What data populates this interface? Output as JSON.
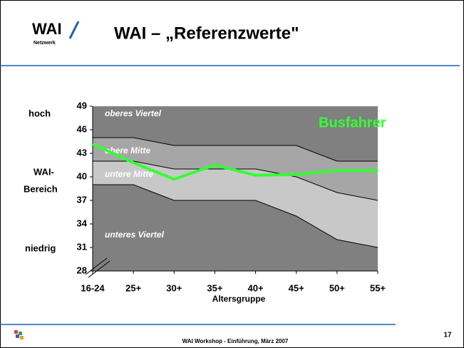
{
  "header": {
    "logo": "WAI",
    "logo_sub": "Netzwerk",
    "title": "WAI – „Referenzwerte\""
  },
  "footer": {
    "text": "WAI Workshop - Einführung, März 2007",
    "page": "17"
  },
  "chart_data": {
    "type": "line",
    "categories": [
      "16-24",
      "25+",
      "30+",
      "35+",
      "40+",
      "45+",
      "50+",
      "55+"
    ],
    "x_label": "Altersgruppe",
    "side_labels": [
      "hoch",
      "WAI-",
      "Bereich",
      "niedrig"
    ],
    "ylim": [
      28,
      49
    ],
    "yticks": [
      28,
      31,
      34,
      37,
      40,
      43,
      46,
      49
    ],
    "bands": [
      {
        "label": "oberes Viertel",
        "color": "#808080"
      },
      {
        "label": "obere Mitte",
        "color": "#a6a6a6"
      },
      {
        "label": "untere Mitte",
        "color": "#c8c8c8"
      },
      {
        "label": "unteres Viertel",
        "color": "#808080"
      }
    ],
    "boundaries": [
      [
        45,
        45,
        44,
        44,
        44,
        44,
        42,
        42
      ],
      [
        42,
        42,
        41,
        41,
        41,
        40,
        38,
        37
      ],
      [
        39,
        39,
        37,
        37,
        37,
        35,
        32,
        31
      ]
    ],
    "series": [
      {
        "name": "Busfahrer",
        "color": "#33ff33",
        "values": [
          44.2,
          41.8,
          39.7,
          41.5,
          40.2,
          40.3,
          40.8,
          40.8
        ]
      }
    ]
  }
}
